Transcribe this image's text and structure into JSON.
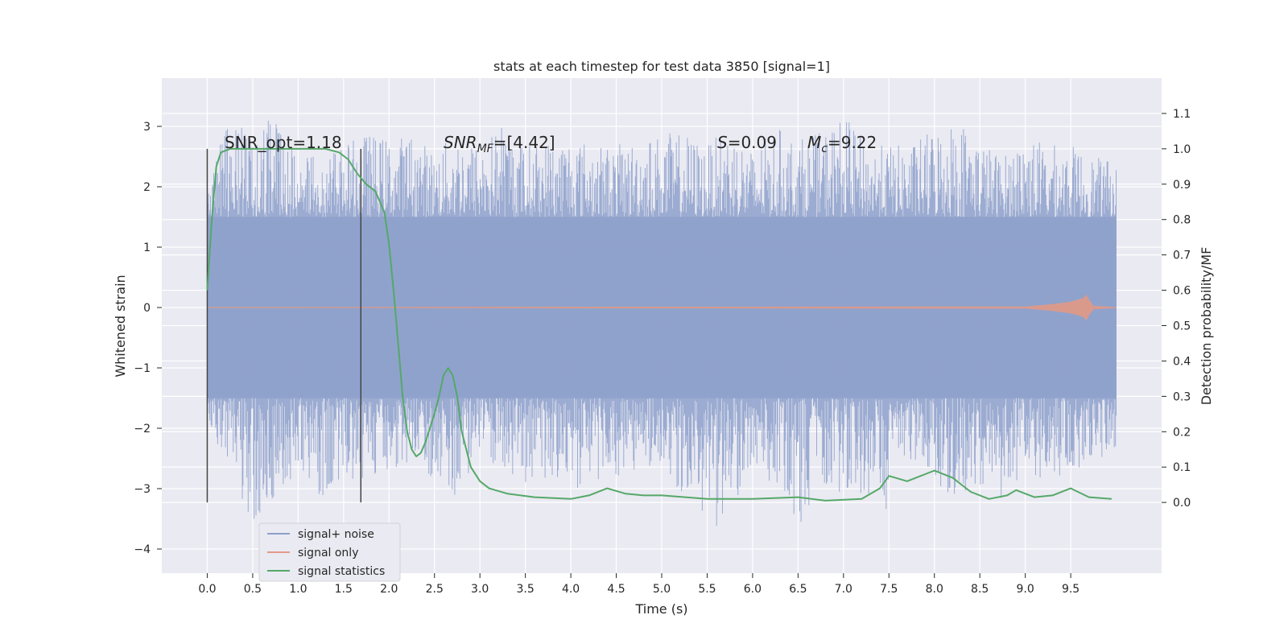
{
  "chart_data": {
    "type": "line",
    "title": "stats at each timestep for test data 3850 [signal=1]",
    "xlabel": "Time (s)",
    "ylabel": "Whitened strain",
    "y2label": "Detection probability/MF",
    "xlim": [
      -0.5,
      10.5
    ],
    "ylim": [
      -4.4,
      3.8
    ],
    "y2lim": [
      -0.2,
      1.2
    ],
    "x_ticks": [
      "0.0",
      "0.5",
      "1.0",
      "1.5",
      "2.0",
      "2.5",
      "3.0",
      "3.5",
      "4.0",
      "4.5",
      "5.0",
      "5.5",
      "6.0",
      "6.5",
      "7.0",
      "7.5",
      "8.0",
      "8.5",
      "9.0",
      "9.5"
    ],
    "y_ticks": [
      "−4",
      "−3",
      "−2",
      "−1",
      "0",
      "1",
      "2",
      "3"
    ],
    "y2_ticks": [
      "0.0",
      "0.1",
      "0.2",
      "0.3",
      "0.4",
      "0.5",
      "0.6",
      "0.7",
      "0.8",
      "0.9",
      "1.0",
      "1.1"
    ],
    "grid": true,
    "legend_position": "lower-left",
    "annotations": {
      "snr_opt": "SNR_opt=1.18",
      "snr_mf_base": "SNR",
      "snr_mf_sub": "MF",
      "snr_mf_value": "=[4.42]",
      "s_base": "S",
      "s_value": "=0.09",
      "mc_base": "M",
      "mc_sub": "c",
      "mc_value": "=9.22"
    },
    "vertical_lines_x": [
      0.0,
      1.69
    ],
    "colors": {
      "background": "#eaeaf2",
      "signal_noise": "#8da0cb",
      "signal_only": "#e29a86",
      "statistics": "#55a868",
      "vline": "#444444"
    },
    "series": [
      {
        "name": "signal+ noise",
        "axis": "left",
        "x_range": [
          0.0,
          10.0
        ],
        "envelope_upper": [
          1.8,
          3.4,
          2.7,
          3.3,
          2.4,
          2.6,
          2.7,
          2.9,
          2.8,
          2.9,
          2.6,
          2.9,
          2.7,
          3.1,
          2.7,
          2.8,
          2.9,
          2.7,
          2.7,
          2.8,
          2.9,
          2.9,
          2.7,
          3.0,
          2.6,
          3.0,
          2.8,
          2.9,
          3.2,
          2.7,
          2.7,
          2.7,
          3.0,
          3.2,
          2.8,
          2.5,
          2.9,
          2.7,
          2.7,
          2.5,
          2.4
        ],
        "envelope_lower": [
          -1.9,
          -2.8,
          -3.7,
          -3.1,
          -2.9,
          -3.2,
          -2.8,
          -2.9,
          -2.7,
          -2.6,
          -2.9,
          -3.2,
          -2.5,
          -2.8,
          -2.9,
          -3.0,
          -3.1,
          -2.9,
          -2.8,
          -2.7,
          -2.9,
          -3.1,
          -3.9,
          -3.4,
          -2.6,
          -3.0,
          -3.7,
          -2.9,
          -3.1,
          -3.1,
          -3.4,
          -2.5,
          -2.8,
          -3.4,
          -3.0,
          -3.2,
          -2.7,
          -2.9,
          -2.7,
          -2.6,
          -2.4
        ],
        "band_upper": 1.5,
        "band_lower": -1.5
      },
      {
        "name": "signal only",
        "axis": "left",
        "x": [
          0.0,
          9.0,
          9.3,
          9.5,
          9.6,
          9.65,
          9.67,
          9.7,
          9.75,
          10.0
        ],
        "amplitude": [
          0.0,
          0.01,
          0.05,
          0.09,
          0.13,
          0.16,
          0.2,
          0.12,
          0.02,
          0.0
        ]
      },
      {
        "name": "signal statistics",
        "axis": "right",
        "x": [
          0.0,
          0.05,
          0.1,
          0.15,
          0.25,
          0.5,
          1.0,
          1.3,
          1.45,
          1.55,
          1.65,
          1.75,
          1.85,
          1.95,
          2.0,
          2.05,
          2.1,
          2.15,
          2.2,
          2.25,
          2.3,
          2.35,
          2.4,
          2.5,
          2.55,
          2.6,
          2.65,
          2.7,
          2.75,
          2.8,
          2.9,
          3.0,
          3.1,
          3.3,
          3.6,
          4.0,
          4.2,
          4.4,
          4.6,
          4.8,
          5.0,
          5.5,
          6.0,
          6.5,
          6.8,
          7.2,
          7.4,
          7.5,
          7.7,
          7.9,
          8.0,
          8.2,
          8.4,
          8.6,
          8.8,
          8.9,
          9.1,
          9.3,
          9.5,
          9.7,
          9.95
        ],
        "y": [
          0.6,
          0.8,
          0.95,
          0.99,
          1.0,
          1.0,
          1.0,
          1.0,
          0.99,
          0.97,
          0.93,
          0.9,
          0.88,
          0.82,
          0.73,
          0.6,
          0.45,
          0.3,
          0.2,
          0.15,
          0.13,
          0.14,
          0.17,
          0.25,
          0.3,
          0.36,
          0.38,
          0.36,
          0.3,
          0.2,
          0.1,
          0.06,
          0.04,
          0.025,
          0.015,
          0.01,
          0.02,
          0.04,
          0.025,
          0.02,
          0.02,
          0.01,
          0.01,
          0.015,
          0.005,
          0.01,
          0.04,
          0.075,
          0.06,
          0.08,
          0.09,
          0.07,
          0.03,
          0.01,
          0.02,
          0.035,
          0.015,
          0.02,
          0.04,
          0.015,
          0.01
        ]
      }
    ]
  }
}
